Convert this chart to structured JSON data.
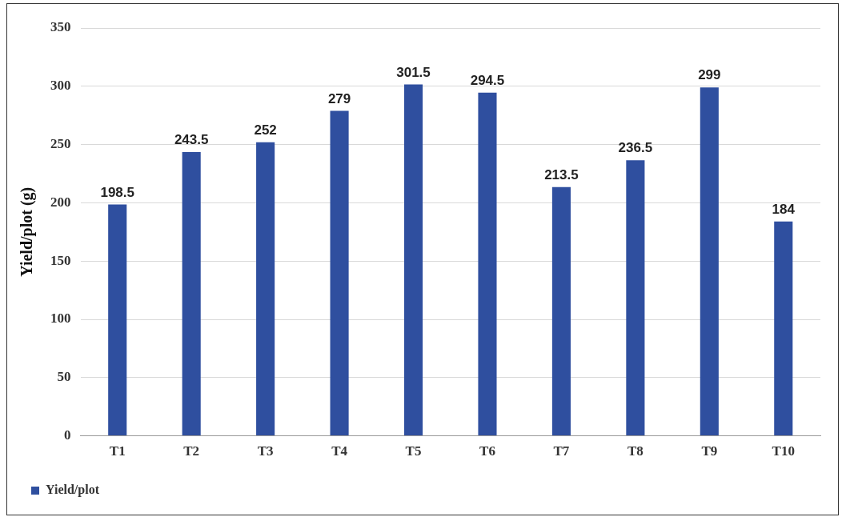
{
  "chart_data": {
    "type": "bar",
    "ylabel": "Yield/plot (g)",
    "categories": [
      "T1",
      "T2",
      "T3",
      "T4",
      "T5",
      "T6",
      "T7",
      "T8",
      "T9",
      "T10"
    ],
    "series": [
      {
        "name": "Yield/plot",
        "color": "#2f4f9f",
        "values": [
          198.5,
          243.5,
          252,
          279,
          301.5,
          294.5,
          213.5,
          236.5,
          299,
          184
        ]
      }
    ],
    "ylim": [
      0,
      350
    ],
    "yticks": [
      0,
      50,
      100,
      150,
      200,
      250,
      300,
      350
    ],
    "grid": "y",
    "legend": "bottom",
    "data_labels": true
  }
}
